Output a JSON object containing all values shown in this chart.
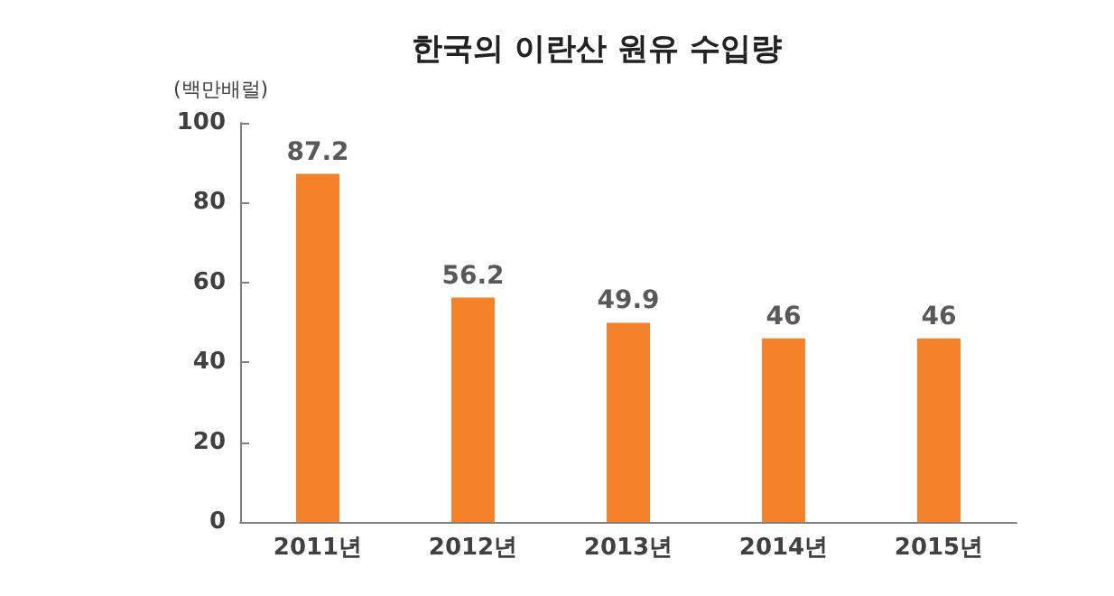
{
  "chart_data": {
    "type": "bar",
    "title": "한국의 이란산 원유 수입량",
    "ylabel": "(백만배럴)",
    "categories": [
      "2011년",
      "2012년",
      "2013년",
      "2014년",
      "2015년"
    ],
    "values": [
      87.2,
      56.2,
      49.9,
      46,
      46
    ],
    "color": "#f5822a",
    "ylim": [
      0,
      100
    ],
    "yticks": [
      0,
      20,
      40,
      60,
      80,
      100
    ],
    "grid": false,
    "data_labels": true
  }
}
